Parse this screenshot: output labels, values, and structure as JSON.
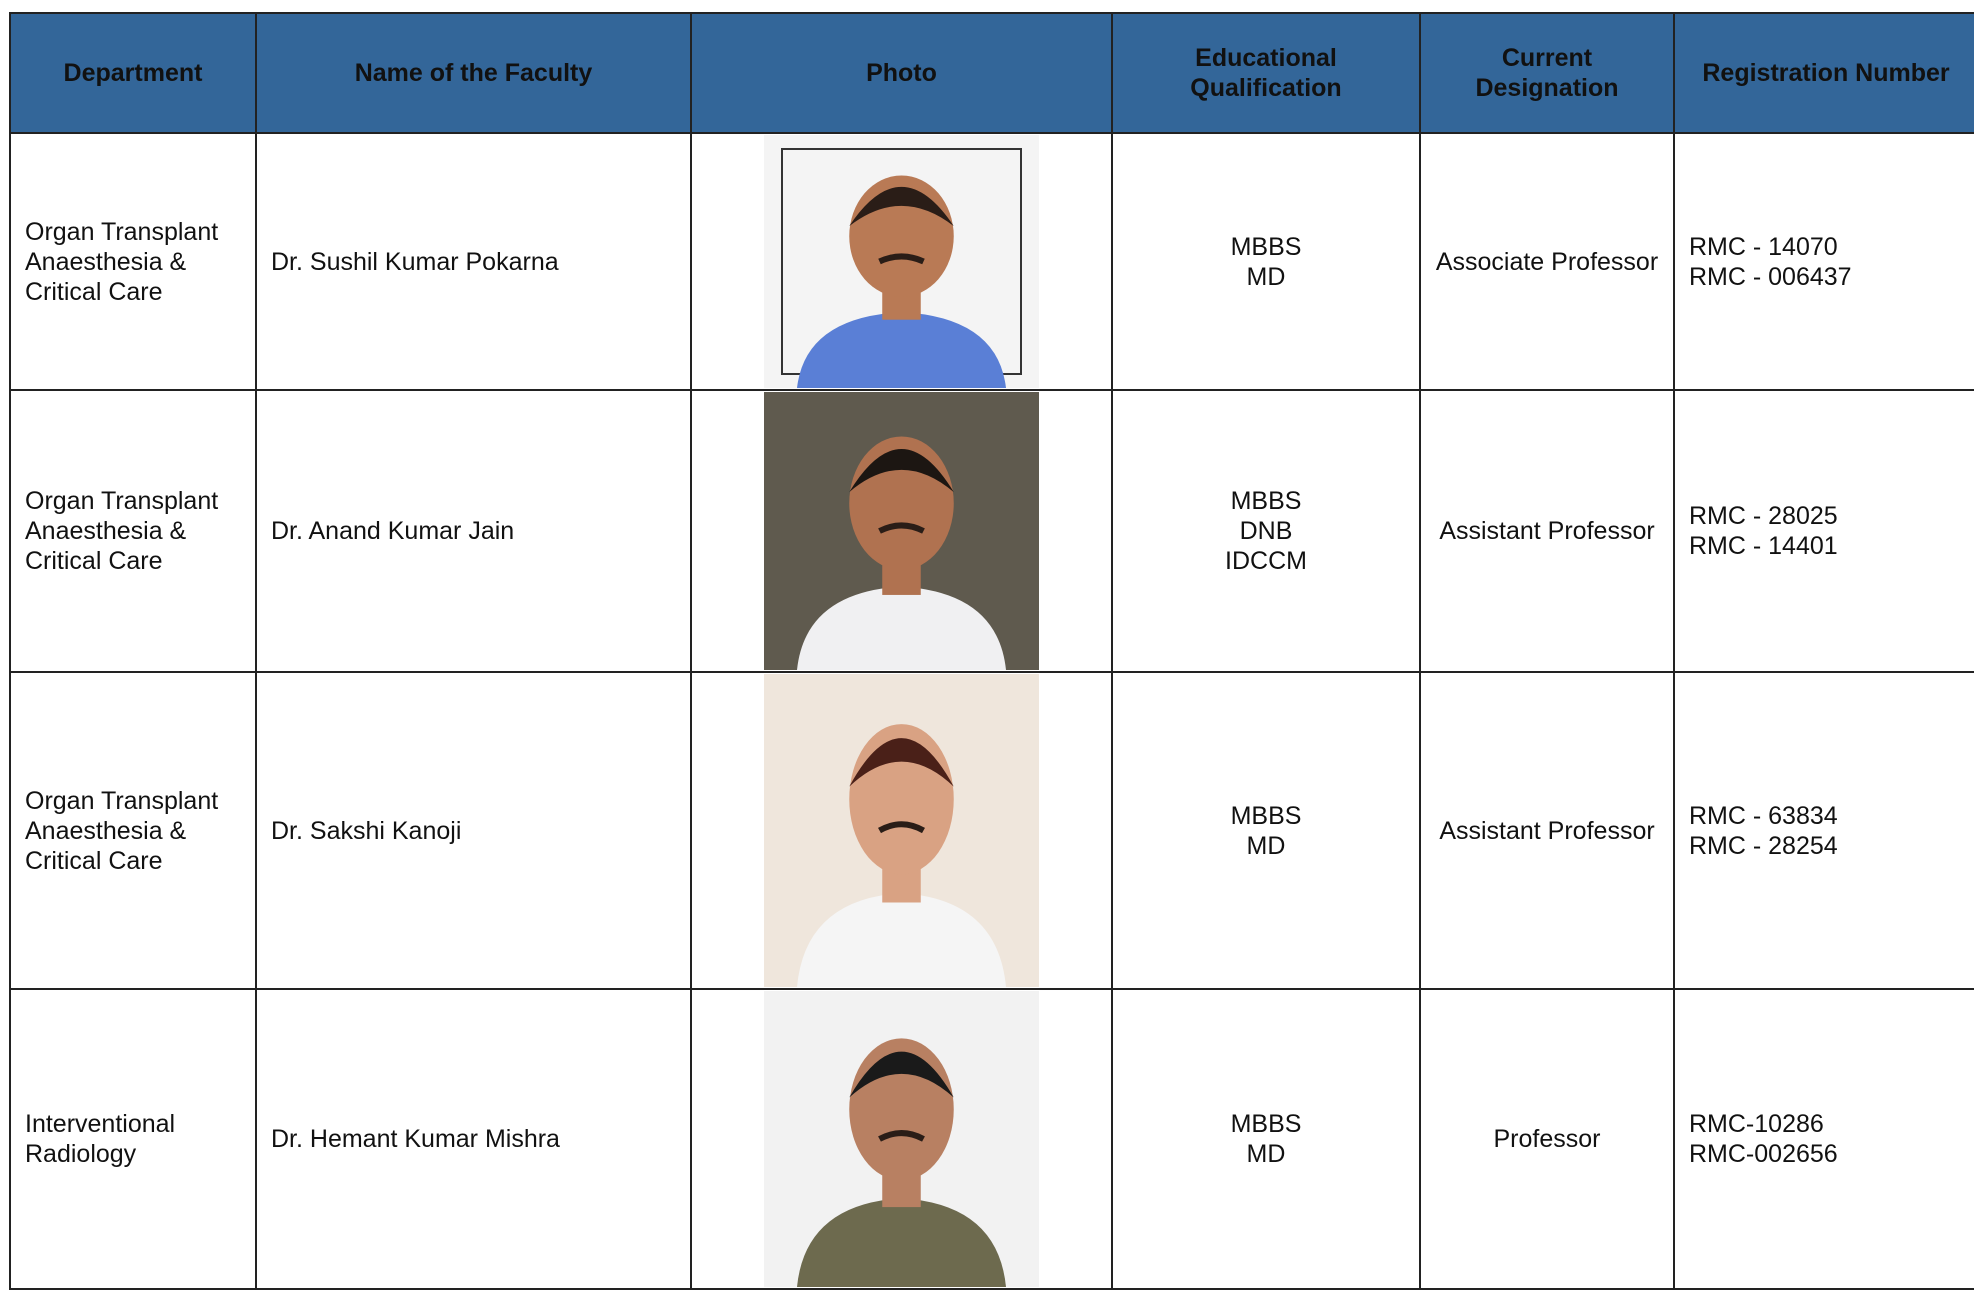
{
  "table": {
    "header": [
      "Department",
      "Name of the Faculty",
      "Photo",
      "Educational Qualification",
      "Current Designation",
      "Registration Number"
    ],
    "rows": [
      {
        "department": "Organ Transplant Anaesthesia & Critical Care",
        "name": "Dr. Sushil Kumar Pokarna",
        "qualification": [
          "MBBS",
          "MD"
        ],
        "designation": "Associate Professor",
        "registration": [
          "RMC - 14070",
          "RMC - 006437"
        ]
      },
      {
        "department": "Organ Transplant Anaesthesia & Critical Care",
        "name": "Dr. Anand Kumar Jain",
        "qualification": [
          "MBBS",
          "DNB",
          "IDCCM"
        ],
        "designation": "Assistant Professor",
        "registration": [
          "RMC - 28025",
          "RMC - 14401"
        ]
      },
      {
        "department": "Organ Transplant Anaesthesia & Critical Care",
        "name": "Dr. Sakshi Kanoji",
        "qualification": [
          "MBBS",
          "MD"
        ],
        "designation": "Assistant Professor",
        "registration": [
          "RMC - 63834",
          "RMC - 28254"
        ]
      },
      {
        "department": "Interventional Radiology",
        "name": "Dr. Hemant Kumar Mishra",
        "qualification": [
          "MBBS",
          "MD"
        ],
        "designation": "Professor",
        "registration": [
          "RMC-10286",
          "RMC-002656"
        ]
      }
    ]
  }
}
